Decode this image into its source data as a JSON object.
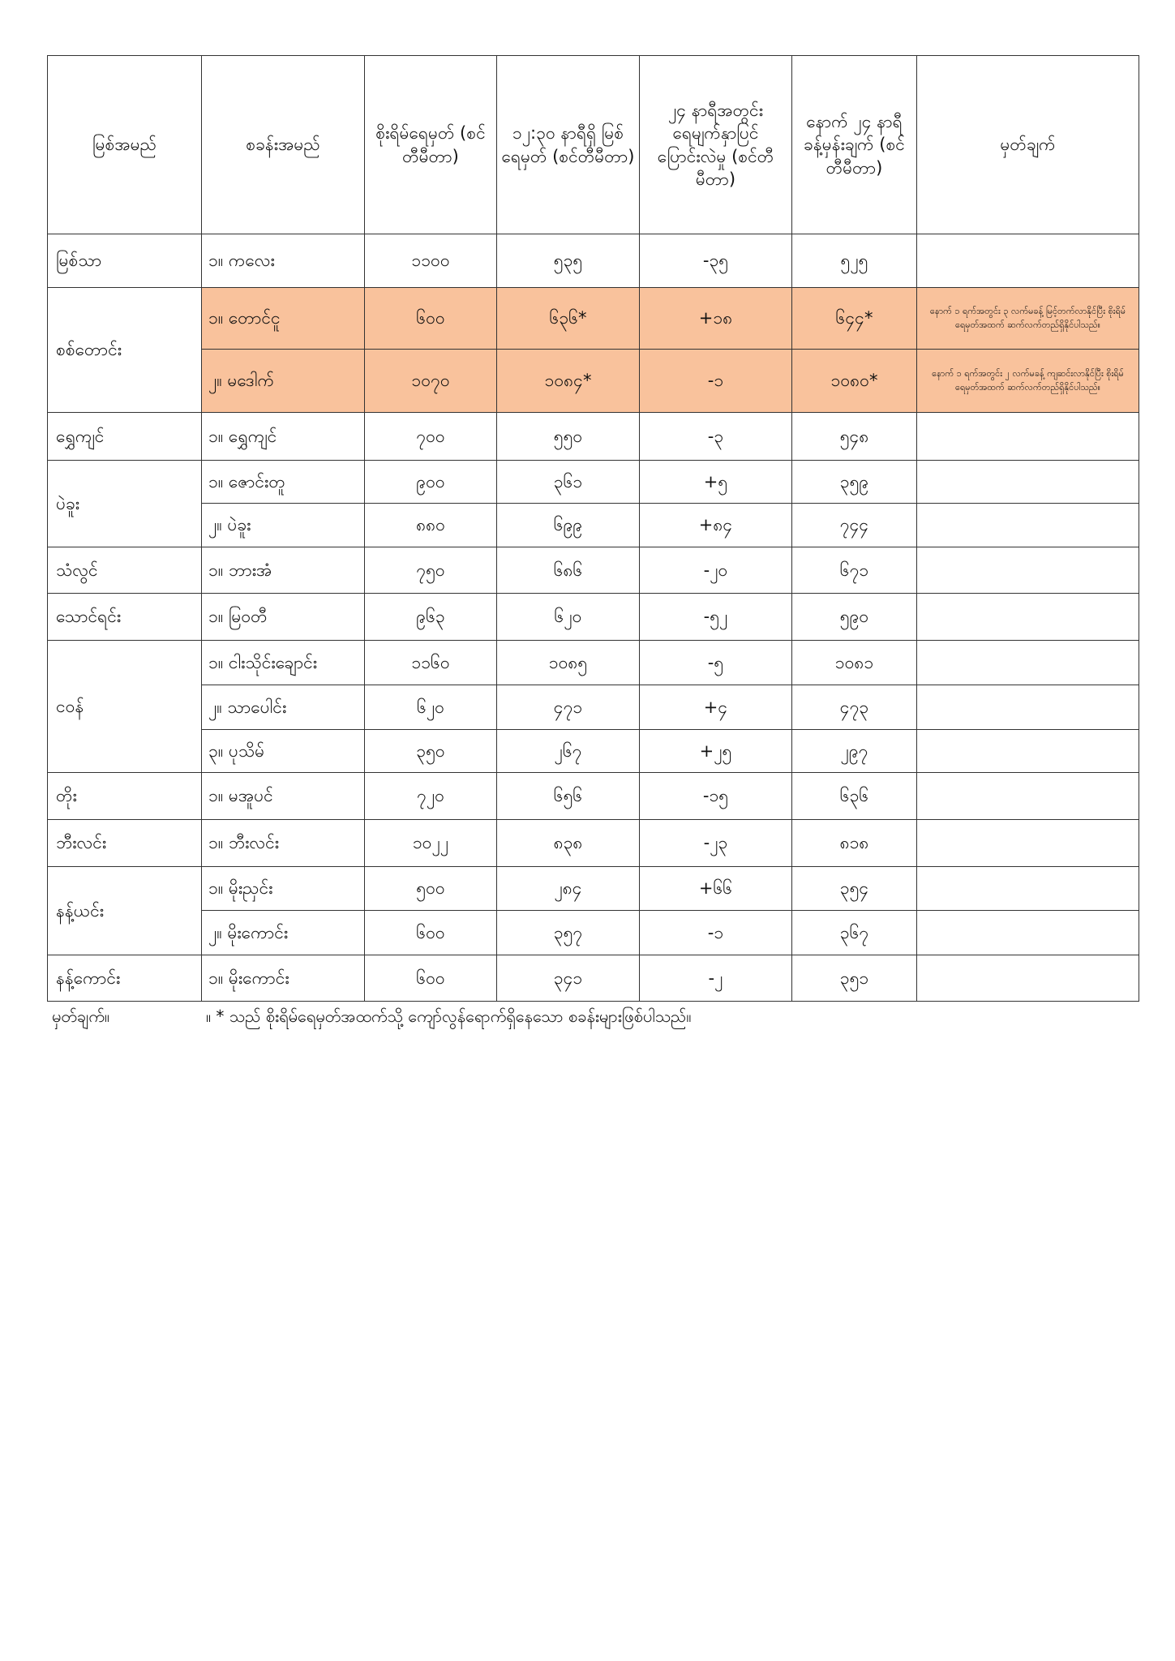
{
  "header": {
    "columns": [
      "မြစ်အမည်",
      "စခန်းအမည်",
      "စိုးရိမ်ရေမှတ် (စင်တီမီတာ)",
      "၁၂:၃၀ နာရီရှိ မြစ်ရေမှတ် (စင်တီမီတာ)",
      "၂၄ နာရီအတွင်း ရေမျက်နှာပြင် ပြောင်းလဲမှု (စင်တီမီတာ)",
      "နောက် ၂၄ နာရီ ခန့်မှန်းချက် (စင်တီမီတာ)",
      "မှတ်ချက်"
    ]
  },
  "table": {
    "rows": [
      {
        "river": "မြစ်သာ",
        "stations": [
          {
            "name": "၁။ ကလေး",
            "warning": "၁၁၀၀",
            "current": "၅၃၅",
            "change": "-၃၅",
            "forecast": "၅၂၅"
          }
        ]
      },
      {
        "river": "စစ်တောင်း",
        "highlight": true,
        "stations": [
          {
            "name": "၁။ တောင်ငူ",
            "warning": "၆၀၀",
            "current": "၆၃၆*",
            "change": "+၁၈",
            "forecast": "၆၄၄*",
            "remark": "နောက် ၁ ရက်အတွင်း ၃ လက်မခန့် မြင့်တက်လာနိုင်ပြီး စိုးရိမ်ရေမှတ်အထက် ဆက်လက်တည်ရှိနိုင်ပါသည်။"
          },
          {
            "name": "၂။ မဒေါက်",
            "warning": "၁၀၇၀",
            "current": "၁၀၈၄*",
            "change": "-၁",
            "forecast": "၁၀၈၀*",
            "remark": "နောက် ၁ ရက်အတွင်း ၂ လက်မခန့် ကျဆင်းလာနိုင်ပြီး စိုးရိမ်ရေမှတ်အထက် ဆက်လက်တည်ရှိနိုင်ပါသည်။"
          }
        ]
      },
      {
        "river": "ရွှေကျင်",
        "stations": [
          {
            "name": "၁။ ရွှေကျင်",
            "warning": "၇၀၀",
            "current": "၅၅၀",
            "change": "-၃",
            "forecast": "၅၄၈"
          }
        ]
      },
      {
        "river": "ပဲခူး",
        "stations": [
          {
            "name": "၁။ ဇောင်းတူ",
            "warning": "၉၀၀",
            "current": "၃၆၁",
            "change": "+၅",
            "forecast": "၃၅၉"
          },
          {
            "name": "၂။ ပဲခူး",
            "warning": "၈၈၀",
            "current": "၆၉၉",
            "change": "+၈၄",
            "forecast": "၇၄၄"
          }
        ]
      },
      {
        "river": "သံလွင်",
        "stations": [
          {
            "name": "၁။ ဘားအံ",
            "warning": "၇၅၀",
            "current": "၆၈၆",
            "change": "-၂၀",
            "forecast": "၆၇၁"
          }
        ]
      },
      {
        "river": "သောင်ရင်း",
        "stations": [
          {
            "name": "၁။ မြဝတီ",
            "warning": "၉၆၃",
            "current": "၆၂၀",
            "change": "-၅၂",
            "forecast": "၅၉၀"
          }
        ]
      },
      {
        "river": "ငဝန်",
        "stations": [
          {
            "name": "၁။ ငါးသိုင်းချောင်း",
            "warning": "၁၁၆၀",
            "current": "၁၀၈၅",
            "change": "-၅",
            "forecast": "၁၀၈၁"
          },
          {
            "name": "၂။ သာပေါင်း",
            "warning": "၆၂၀",
            "current": "၄၇၁",
            "change": "+၄",
            "forecast": "၄၇၃"
          },
          {
            "name": "၃။ ပုသိမ်",
            "warning": "၃၅၀",
            "current": "၂၆၇",
            "change": "+၂၅",
            "forecast": "၂၉၇"
          }
        ]
      },
      {
        "river": "တိုး",
        "stations": [
          {
            "name": "၁။ မအူပင်",
            "warning": "၇၂၀",
            "current": "၆၅၆",
            "change": "-၁၅",
            "forecast": "၆၃၆"
          }
        ]
      },
      {
        "river": "ဘီးလင်း",
        "stations": [
          {
            "name": "၁။ ဘီးလင်း",
            "warning": "၁၀၂၂",
            "current": "၈၃၈",
            "change": "-၂၃",
            "forecast": "၈၁၈"
          }
        ]
      },
      {
        "river": "နန့်ယင်း",
        "stations": [
          {
            "name": "၁။ မိုးညှင်း",
            "warning": "၅၀၀",
            "current": "၂၈၄",
            "change": "+၆၆",
            "forecast": "၃၅၄"
          },
          {
            "name": "၂။ မိုးကောင်း",
            "warning": "၆၀၀",
            "current": "၃၅၇",
            "change": "-၁",
            "forecast": "၃၆၇"
          }
        ]
      },
      {
        "river": "နန့်ကောင်း",
        "stations": [
          {
            "name": "၁။ မိုးကောင်း",
            "warning": "၆၀၀",
            "current": "၃၄၁",
            "change": "-၂",
            "forecast": "၃၅၁"
          }
        ]
      }
    ]
  },
  "footer": {
    "label": "မှတ်ချက်။",
    "text": "။ * သည် စိုးရိမ်ရေမှတ်အထက်သို့ ကျော်လွန်ရောက်ရှိနေသော စခန်းများဖြစ်ပါသည်။"
  }
}
